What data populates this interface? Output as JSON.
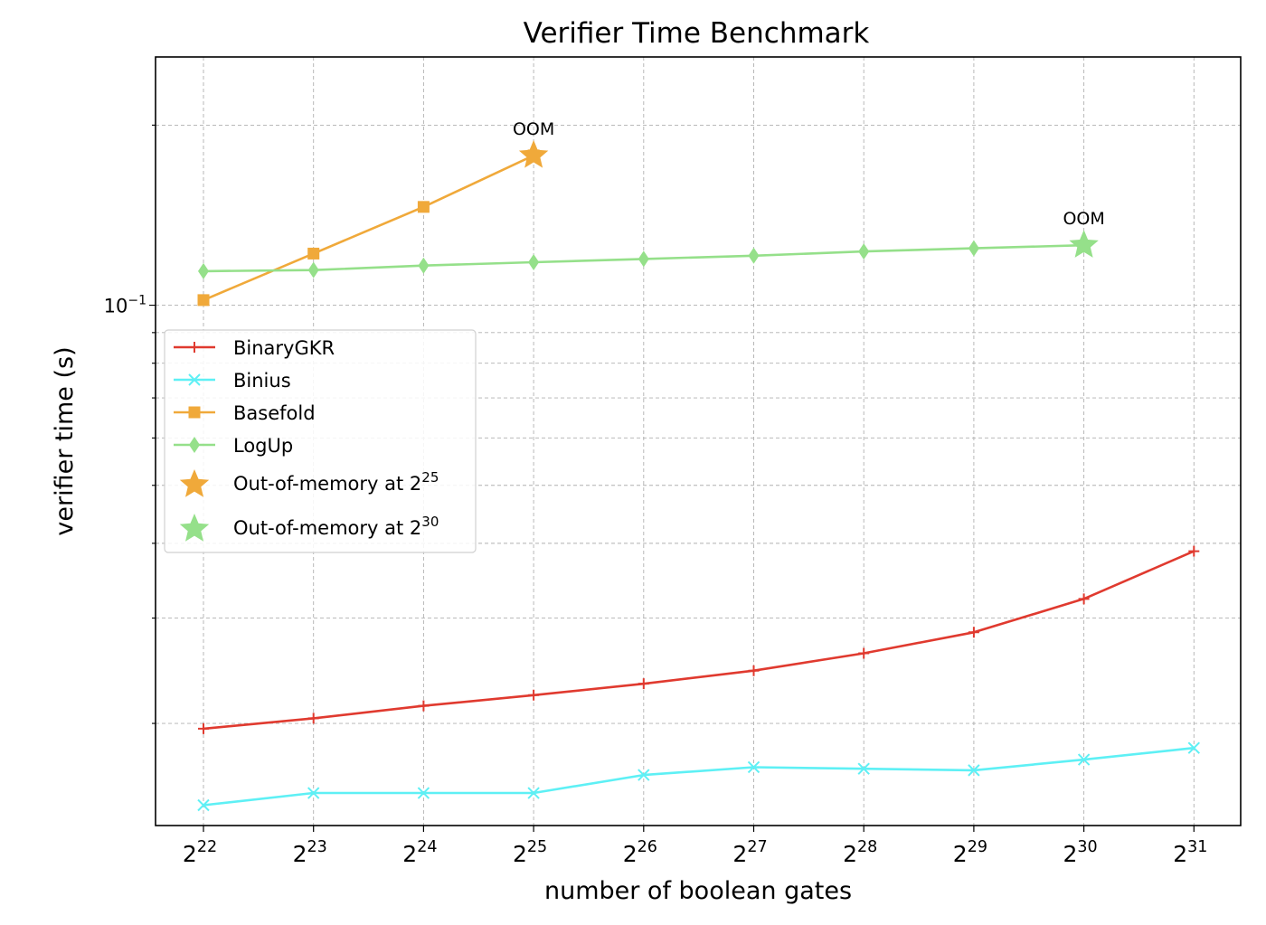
{
  "chart_data": {
    "type": "line",
    "title": "Verifier Time Benchmark",
    "xlabel": "number of boolean gates",
    "ylabel": "verifier time (s)",
    "yscale": "log",
    "ylim": [
      0.0135,
      0.26
    ],
    "grid": true,
    "x_exponents": [
      22,
      23,
      24,
      25,
      26,
      27,
      28,
      29,
      30,
      31
    ],
    "x_tick_base": "2",
    "y_major_tick": {
      "value": 0.1,
      "base": "10",
      "exponent": "−1"
    },
    "y_minor_ticks": [
      0.02,
      0.03,
      0.04,
      0.05,
      0.06,
      0.07,
      0.08,
      0.09,
      0.2
    ],
    "series": [
      {
        "name": "BinaryGKR",
        "color": "#e03a2f",
        "marker": "plus",
        "x": [
          22,
          23,
          24,
          25,
          26,
          27,
          28,
          29,
          30,
          31
        ],
        "values": [
          0.0196,
          0.0204,
          0.0214,
          0.0223,
          0.0233,
          0.0245,
          0.0262,
          0.0284,
          0.0323,
          0.0388
        ]
      },
      {
        "name": "Binius",
        "color": "#5ef0f5",
        "marker": "x",
        "x": [
          22,
          23,
          24,
          25,
          26,
          27,
          28,
          29,
          30,
          31
        ],
        "values": [
          0.0146,
          0.0153,
          0.0153,
          0.0153,
          0.0164,
          0.0169,
          0.0168,
          0.0167,
          0.0174,
          0.0182
        ]
      },
      {
        "name": "Basefold",
        "color": "#f0a93a",
        "marker": "square",
        "x": [
          22,
          23,
          24,
          25
        ],
        "values": [
          0.102,
          0.122,
          0.146,
          0.178
        ]
      },
      {
        "name": "LogUp",
        "color": "#95e08a",
        "marker": "diamond",
        "x": [
          22,
          23,
          24,
          25,
          26,
          27,
          28,
          29,
          30
        ],
        "values": [
          0.114,
          0.1145,
          0.1165,
          0.118,
          0.1195,
          0.121,
          0.123,
          0.1245,
          0.126
        ]
      }
    ],
    "oom_points": [
      {
        "x": 25,
        "value": 0.178,
        "label": "OOM",
        "color": "#f0a93a"
      },
      {
        "x": 30,
        "value": 0.126,
        "label": "OOM",
        "color": "#95e08a"
      }
    ],
    "legend": {
      "position": "center-left",
      "entries": [
        {
          "label": "BinaryGKR",
          "color": "#e03a2f",
          "marker": "plus"
        },
        {
          "label": "Binius",
          "color": "#5ef0f5",
          "marker": "x"
        },
        {
          "label": "Basefold",
          "color": "#f0a93a",
          "marker": "square"
        },
        {
          "label": "LogUp",
          "color": "#95e08a",
          "marker": "diamond"
        },
        {
          "label": "Out-of-memory at 2",
          "sup": "25",
          "color": "#f0a93a",
          "marker": "star"
        },
        {
          "label": "Out-of-memory at 2",
          "sup": "30",
          "color": "#95e08a",
          "marker": "star"
        }
      ]
    }
  }
}
